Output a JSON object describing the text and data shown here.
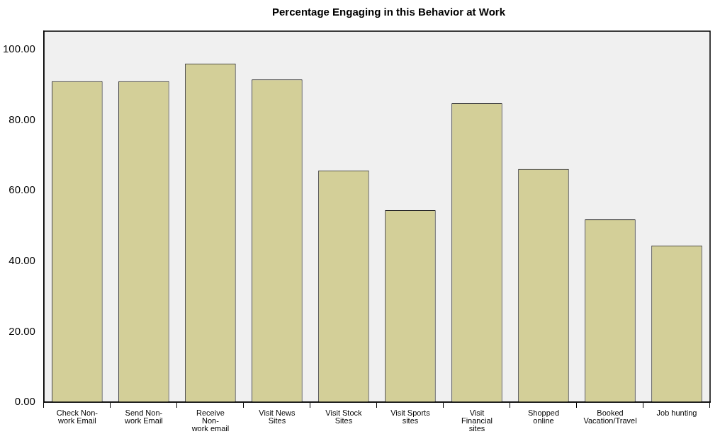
{
  "chart_data": {
    "type": "bar",
    "title": "Percentage Engaging in this Behavior at Work",
    "categories": [
      "Check Non-work Email",
      "Send Non-work Email",
      "Receive Non-work email",
      "Visit News Sites",
      "Visit Stock Sites",
      "Visit Sports sites",
      "Visit Financial sites",
      "Shopped online",
      "Booked Vacation/Travel",
      "Job hunting"
    ],
    "values": [
      91.0,
      91.0,
      96.0,
      91.5,
      65.7,
      54.4,
      84.7,
      66.1,
      51.8,
      44.4
    ],
    "color": "#d3cf98",
    "ylim": [
      0,
      105.2
    ],
    "yticks": [
      {
        "value": 0,
        "label": "0.00"
      },
      {
        "value": 20,
        "label": "20.00"
      },
      {
        "value": 40,
        "label": "40.00"
      },
      {
        "value": 60,
        "label": "60.00"
      },
      {
        "value": 80,
        "label": "80.00"
      },
      {
        "value": 100,
        "label": "100.00"
      }
    ],
    "grid": false,
    "legend": false
  }
}
